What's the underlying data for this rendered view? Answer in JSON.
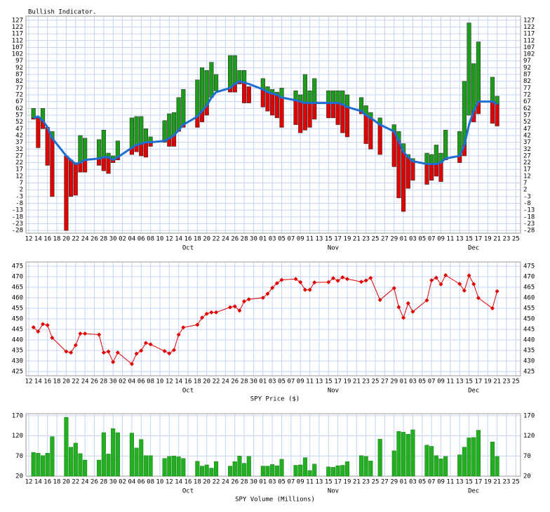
{
  "chart_data": [
    {
      "type": "hilo",
      "title": "Bullish Indicator.",
      "x": [
        1,
        2,
        3,
        4,
        5,
        8,
        9,
        10,
        11,
        12,
        15,
        16,
        17,
        18,
        19,
        22,
        23,
        24,
        25,
        26,
        29,
        30,
        31,
        32,
        33,
        36,
        37,
        38,
        39,
        40,
        43,
        44,
        45,
        46,
        47,
        50,
        51,
        52,
        53,
        54,
        57,
        58,
        59,
        60,
        61,
        64,
        65,
        66,
        67,
        68,
        71,
        72,
        73,
        75,
        78,
        79,
        80,
        81,
        82,
        85,
        86,
        87,
        88,
        89,
        92,
        93,
        94,
        95,
        96,
        99,
        100
      ],
      "high": [
        62,
        55,
        62,
        48,
        45,
        27,
        24,
        22,
        42,
        40,
        39,
        46,
        29,
        27,
        38,
        55,
        56,
        56,
        47,
        41,
        53,
        58,
        59,
        70,
        76,
        83,
        92,
        90,
        96,
        87,
        101,
        101,
        90,
        90,
        78,
        84,
        78,
        76,
        74,
        77,
        75,
        72,
        87,
        75,
        84,
        75,
        75,
        75,
        75,
        72,
        70,
        64,
        59,
        55,
        50,
        45,
        36,
        28,
        25,
        29,
        28,
        35,
        29,
        46,
        45,
        82,
        125,
        95,
        111,
        85,
        71
      ],
      "low": [
        54,
        33,
        47,
        20,
        -3,
        -28,
        -3,
        -2,
        15,
        15,
        20,
        16,
        14,
        22,
        24,
        28,
        30,
        27,
        26,
        34,
        37,
        34,
        34,
        45,
        48,
        48,
        52,
        57,
        70,
        75,
        74,
        74,
        80,
        66,
        66,
        63,
        60,
        57,
        55,
        48,
        50,
        44,
        46,
        48,
        54,
        55,
        55,
        50,
        44,
        41,
        58,
        36,
        32,
        28,
        19,
        -4,
        -14,
        3,
        9,
        6,
        9,
        12,
        8,
        24,
        22,
        27,
        57,
        52,
        58,
        51,
        49
      ],
      "line": [
        55,
        56,
        53,
        48,
        40,
        27,
        24,
        21,
        22,
        24,
        25,
        26,
        26,
        24,
        26,
        33,
        35,
        36,
        37,
        37,
        38,
        40,
        42,
        46,
        50,
        56,
        60,
        64,
        70,
        74,
        77,
        80,
        82,
        81,
        80,
        76,
        74,
        73,
        72,
        70,
        68,
        67,
        66,
        66,
        66,
        66,
        66,
        66,
        65,
        63,
        60,
        57,
        55,
        50,
        45,
        38,
        30,
        26,
        23,
        21,
        21,
        21,
        22,
        25,
        27,
        35,
        50,
        60,
        67,
        67,
        65
      ],
      "up_color": "#1a9e1a",
      "down_color": "#e00000",
      "line_color": "#1e6ed2",
      "xlim": [
        -0.6,
        105
      ],
      "xticks": [
        {
          "value": 0,
          "label": "12"
        },
        {
          "value": 2,
          "label": "14"
        },
        {
          "value": 4,
          "label": "16"
        },
        {
          "value": 6,
          "label": "18"
        },
        {
          "value": 8,
          "label": "20"
        },
        {
          "value": 10,
          "label": "22"
        },
        {
          "value": 12,
          "label": "24"
        },
        {
          "value": 14,
          "label": "26"
        },
        {
          "value": 16,
          "label": "28"
        },
        {
          "value": 18,
          "label": "30"
        },
        {
          "value": 20,
          "label": "02"
        },
        {
          "value": 22,
          "label": "04"
        },
        {
          "value": 24,
          "label": "06"
        },
        {
          "value": 26,
          "label": "08"
        },
        {
          "value": 28,
          "label": "10"
        },
        {
          "value": 30,
          "label": "12"
        },
        {
          "value": 32,
          "label": "14"
        },
        {
          "value": 34,
          "label": "16"
        },
        {
          "value": 36,
          "label": "18"
        },
        {
          "value": 38,
          "label": "20"
        },
        {
          "value": 40,
          "label": "22"
        },
        {
          "value": 42,
          "label": "24"
        },
        {
          "value": 44,
          "label": "26"
        },
        {
          "value": 46,
          "label": "28"
        },
        {
          "value": 48,
          "label": "30"
        },
        {
          "value": 50,
          "label": "01"
        },
        {
          "value": 52,
          "label": "03"
        },
        {
          "value": 54,
          "label": "05"
        },
        {
          "value": 56,
          "label": "07"
        },
        {
          "value": 58,
          "label": "09"
        },
        {
          "value": 60,
          "label": "11"
        },
        {
          "value": 62,
          "label": "13"
        },
        {
          "value": 64,
          "label": "15"
        },
        {
          "value": 66,
          "label": "17"
        },
        {
          "value": 68,
          "label": "19"
        },
        {
          "value": 70,
          "label": "21"
        },
        {
          "value": 72,
          "label": "23"
        },
        {
          "value": 74,
          "label": "25"
        },
        {
          "value": 76,
          "label": "27"
        },
        {
          "value": 78,
          "label": "29"
        },
        {
          "value": 80,
          "label": "01"
        },
        {
          "value": 82,
          "label": "03"
        },
        {
          "value": 84,
          "label": "05"
        },
        {
          "value": 86,
          "label": "07"
        },
        {
          "value": 88,
          "label": "09"
        },
        {
          "value": 90,
          "label": "11"
        },
        {
          "value": 92,
          "label": "13"
        },
        {
          "value": 94,
          "label": "15"
        },
        {
          "value": 96,
          "label": "17"
        },
        {
          "value": 98,
          "label": "19"
        },
        {
          "value": 100,
          "label": "21"
        },
        {
          "value": 102,
          "label": "23"
        },
        {
          "value": 104,
          "label": "25"
        }
      ],
      "month_labels": [
        {
          "value": 34,
          "label": "Oct"
        },
        {
          "value": 65,
          "label": "Nov"
        },
        {
          "value": 95,
          "label": "Dec"
        }
      ],
      "ylim": [
        -30,
        130
      ],
      "yticks": [
        -28,
        -23,
        -18,
        -13,
        -8,
        -3,
        2,
        7,
        12,
        17,
        22,
        27,
        32,
        37,
        42,
        47,
        52,
        57,
        62,
        67,
        72,
        77,
        82,
        87,
        92,
        97,
        102,
        107,
        112,
        117,
        122,
        127
      ],
      "grid": true
    },
    {
      "type": "line",
      "title": "SPY Price ($)",
      "values": [
        446,
        444,
        447.5,
        447,
        441,
        434.5,
        434,
        437.5,
        443,
        443,
        442.5,
        434,
        434.5,
        429.5,
        434,
        428.6,
        433.5,
        434.9,
        438.6,
        437.9,
        434.7,
        433.6,
        435.2,
        442.5,
        445.9,
        447.2,
        450.6,
        452.4,
        453.1,
        453.1,
        455.5,
        455.9,
        453.9,
        458.3,
        459.3,
        460,
        461.9,
        464.7,
        466.9,
        468.5,
        468.9,
        467.4,
        463.8,
        463.8,
        467.3,
        467.4,
        469.3,
        468.1,
        469.7,
        468.9,
        467.6,
        468.2,
        469.4,
        459,
        464.6,
        455.6,
        450.5,
        457.4,
        453.4,
        458.8,
        468.3,
        469.5,
        466.4,
        470.7,
        466.6,
        463.4,
        470.6,
        466.5,
        459.9,
        455,
        463.1
      ],
      "color": "#e00000",
      "ylim": [
        423,
        477
      ],
      "yticks": [
        425,
        430,
        435,
        440,
        445,
        450,
        455,
        460,
        465,
        470,
        475
      ],
      "grid": true
    },
    {
      "type": "bar",
      "title": "SPY Volume (Millions)",
      "values": [
        79,
        77,
        71,
        77,
        118,
        166,
        92,
        102,
        76,
        60,
        60,
        128,
        75,
        138,
        128,
        127,
        90,
        111,
        71,
        71,
        64,
        69,
        70,
        68,
        64,
        57,
        45,
        48,
        40,
        56,
        45,
        56,
        70,
        52,
        69,
        45,
        45,
        49,
        46,
        62,
        47,
        48,
        66,
        34,
        50,
        43,
        42,
        46,
        47,
        56,
        71,
        69,
        58,
        112,
        83,
        131,
        129,
        124,
        135,
        97,
        94,
        71,
        63,
        69,
        73,
        92,
        115,
        116,
        134,
        105,
        69
      ],
      "color": "#22b022",
      "ylim": [
        20,
        175
      ],
      "yticks": [
        20,
        70,
        120,
        170
      ],
      "grid": true
    }
  ]
}
